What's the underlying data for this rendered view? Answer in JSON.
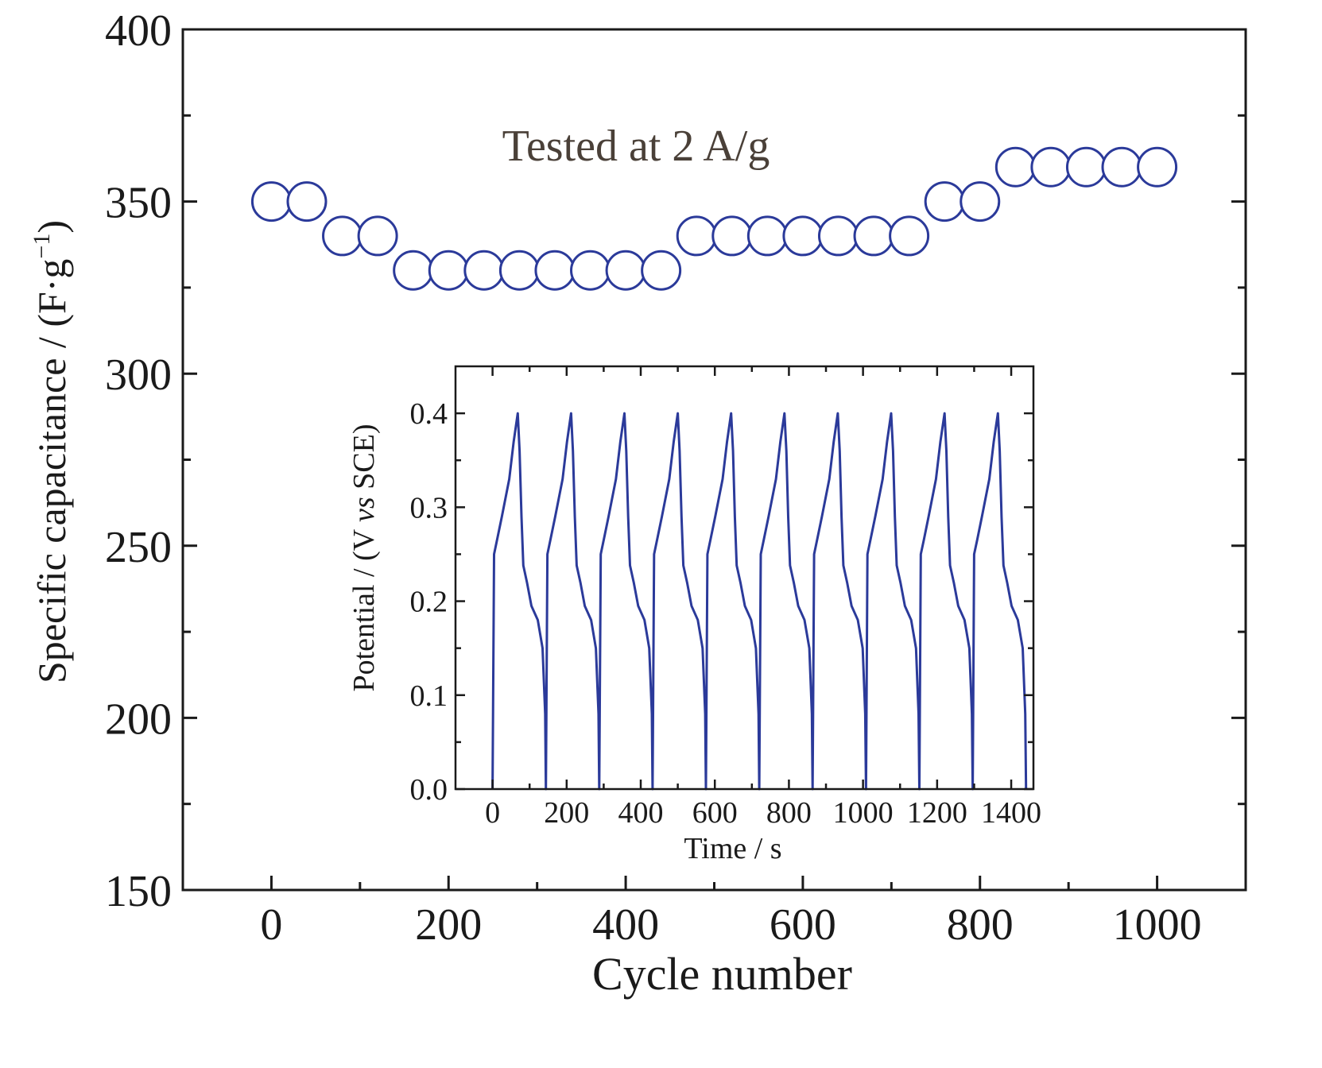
{
  "chart_data": [
    {
      "type": "scatter",
      "title": "",
      "xlabel": "Cycle number",
      "ylabel": "Specific capacitance / (F·g",
      "ylabel_sup": "−1",
      "ylabel_close": ")",
      "xlim": [
        -100,
        1100
      ],
      "ylim": [
        150,
        400
      ],
      "xticks": [
        0,
        200,
        400,
        600,
        800,
        1000
      ],
      "xticks_minor": [
        100,
        300,
        500,
        700,
        900,
        1100
      ],
      "yticks": [
        150,
        200,
        250,
        300,
        350,
        400
      ],
      "yticks_minor": [
        175,
        225,
        275,
        325,
        375
      ],
      "annotation": "Tested at 2 A/g",
      "marker": "open-circle",
      "color": "#2b3a9a",
      "series": [
        {
          "x": [
            0,
            40,
            80,
            120,
            160,
            200,
            240,
            280,
            320,
            360,
            400,
            440,
            480,
            520,
            560,
            600,
            640,
            680,
            720,
            760,
            800,
            840,
            880,
            920,
            960,
            1000
          ],
          "values": [
            350,
            350,
            340,
            340,
            330,
            330,
            330,
            330,
            330,
            330,
            330,
            330,
            340,
            340,
            340,
            340,
            340,
            340,
            340,
            350,
            350,
            360,
            360,
            360,
            360,
            360
          ]
        }
      ]
    },
    {
      "type": "line",
      "title": "",
      "xlabel": "Time / s",
      "ylabel_pre": "Potential / (V ",
      "ylabel_italic": "vs",
      "ylabel_post": " SCE)",
      "xlim": [
        -100,
        1460
      ],
      "ylim": [
        0.0,
        0.45
      ],
      "xticks": [
        0,
        200,
        400,
        600,
        800,
        1000,
        1200,
        1400
      ],
      "xticks_minor": [
        100,
        300,
        500,
        700,
        900,
        1100,
        1300
      ],
      "yticks": [
        "0.0",
        "0.1",
        "0.2",
        "0.3",
        "0.4"
      ],
      "yticks_minor": [
        0.05,
        0.15,
        0.25,
        0.35
      ],
      "color": "#2b3a9a",
      "cycle": {
        "start": 0,
        "period": 144,
        "t": [
          0,
          4,
          12,
          25,
          45,
          57,
          68,
          73,
          78,
          83,
          93,
          105,
          122,
          135,
          142,
          144
        ],
        "v": [
          0.0,
          0.25,
          0.265,
          0.29,
          0.33,
          0.37,
          0.4,
          0.36,
          0.29,
          0.238,
          0.22,
          0.195,
          0.18,
          0.15,
          0.08,
          0.0
        ],
        "count": 10
      }
    }
  ]
}
